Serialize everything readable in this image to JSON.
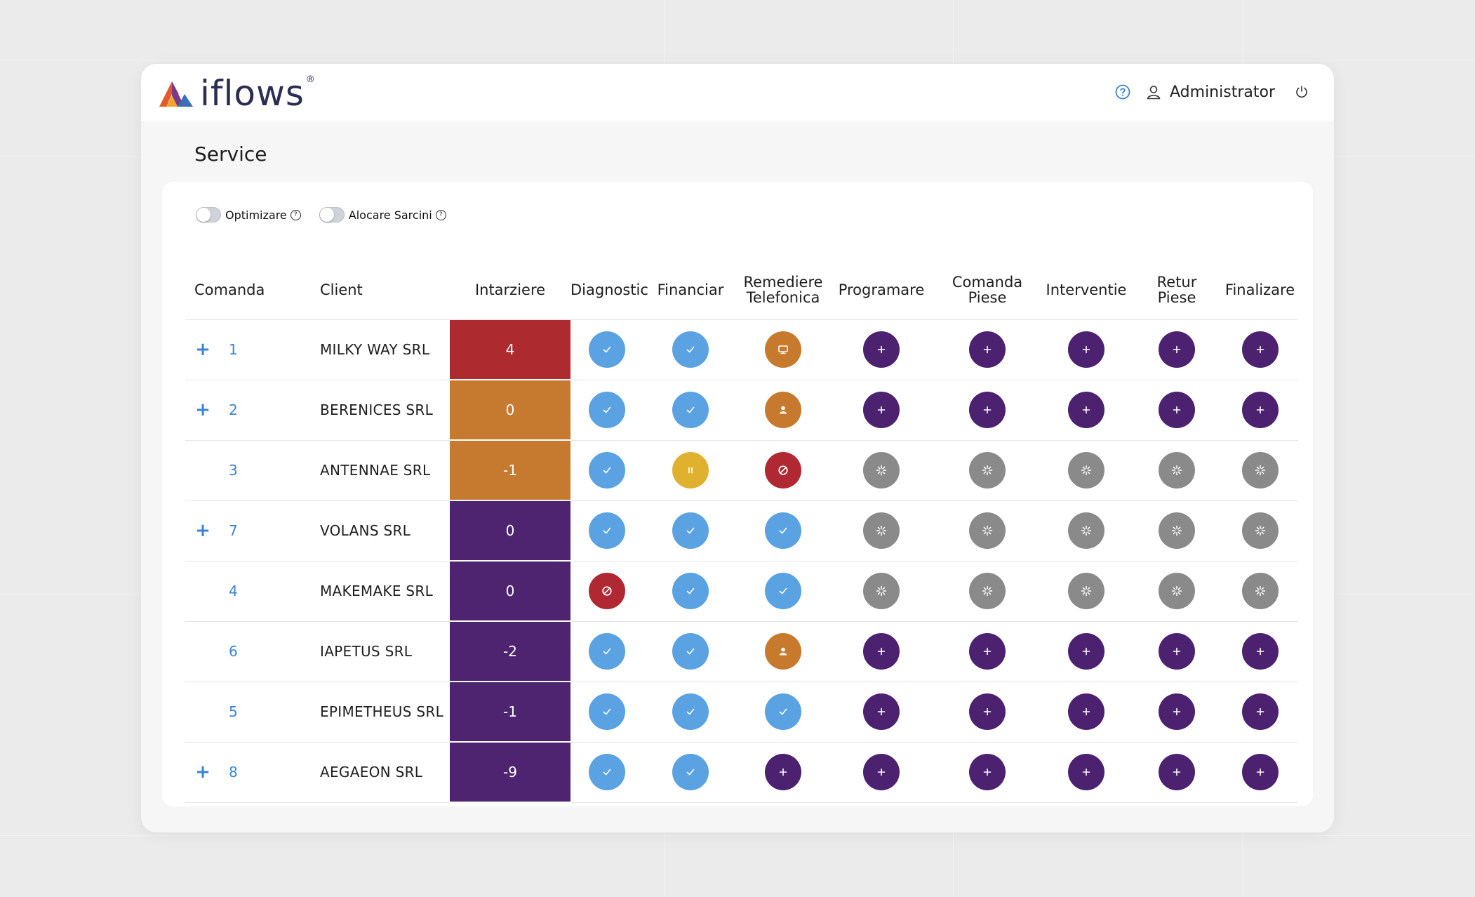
{
  "brand": {
    "name": "iflows",
    "registered_mark": "®",
    "logo_icon": "iflows-logo-icon"
  },
  "header": {
    "help_icon": "help-circle-icon",
    "user_icon": "user-icon",
    "user_name": "Administrator",
    "power_icon": "power-icon"
  },
  "page": {
    "title": "Service"
  },
  "toggles": [
    {
      "label": "Optimizare",
      "enabled": false,
      "help": "?"
    },
    {
      "label": "Alocare Sarcini",
      "enabled": false,
      "help": "?"
    }
  ],
  "table": {
    "columns": [
      {
        "key": "comanda",
        "label": "Comanda"
      },
      {
        "key": "client",
        "label": "Client"
      },
      {
        "key": "intarziere",
        "label": "Intarziere"
      },
      {
        "key": "diagnostic",
        "label": "Diagnostic"
      },
      {
        "key": "financiar",
        "label": "Financiar"
      },
      {
        "key": "remediere",
        "label": "Remediere\nTelefonica"
      },
      {
        "key": "programare",
        "label": "Programare"
      },
      {
        "key": "comanda_piese",
        "label": "Comanda\nPiese"
      },
      {
        "key": "interventie",
        "label": "Interventie"
      },
      {
        "key": "retur_piese",
        "label": "Retur\nPiese"
      },
      {
        "key": "finalizare",
        "label": "Finalizare"
      }
    ],
    "status_colors": {
      "done": "#5aa2e2",
      "add": "#4b2170",
      "loading": "#8a8a8a",
      "blocked": "#b02832",
      "paused": "#e0b12f",
      "remote": "#c77a2e",
      "person": "#c77a2e"
    },
    "delay_colors": {
      "red": "#ad2a2f",
      "orange": "#c57a30",
      "purple": "#4e2370"
    },
    "rows": [
      {
        "expand": true,
        "id": "1",
        "client": "MILKY WAY SRL",
        "delay": "4",
        "delay_color": "red",
        "statuses": [
          "done",
          "done",
          "remote",
          "add",
          "add",
          "add",
          "add",
          "add"
        ]
      },
      {
        "expand": true,
        "id": "2",
        "client": "BERENICES SRL",
        "delay": "0",
        "delay_color": "orange",
        "statuses": [
          "done",
          "done",
          "person",
          "add",
          "add",
          "add",
          "add",
          "add"
        ]
      },
      {
        "expand": false,
        "id": "3",
        "client": "ANTENNAE SRL",
        "delay": "-1",
        "delay_color": "orange",
        "statuses": [
          "done",
          "paused",
          "blocked",
          "loading",
          "loading",
          "loading",
          "loading",
          "loading"
        ]
      },
      {
        "expand": true,
        "id": "7",
        "client": "VOLANS SRL",
        "delay": "0",
        "delay_color": "purple",
        "statuses": [
          "done",
          "done",
          "done",
          "loading",
          "loading",
          "loading",
          "loading",
          "loading"
        ]
      },
      {
        "expand": false,
        "id": "4",
        "client": "MAKEMAKE SRL",
        "delay": "0",
        "delay_color": "purple",
        "statuses": [
          "blocked",
          "done",
          "done",
          "loading",
          "loading",
          "loading",
          "loading",
          "loading"
        ]
      },
      {
        "expand": false,
        "id": "6",
        "client": "IAPETUS SRL",
        "delay": "-2",
        "delay_color": "purple",
        "statuses": [
          "done",
          "done",
          "person",
          "add",
          "add",
          "add",
          "add",
          "add"
        ]
      },
      {
        "expand": false,
        "id": "5",
        "client": "EPIMETHEUS SRL",
        "delay": "-1",
        "delay_color": "purple",
        "statuses": [
          "done",
          "done",
          "done",
          "add",
          "add",
          "add",
          "add",
          "add"
        ]
      },
      {
        "expand": true,
        "id": "8",
        "client": "AEGAEON SRL",
        "delay": "-9",
        "delay_color": "purple",
        "statuses": [
          "done",
          "done",
          "add",
          "add",
          "add",
          "add",
          "add",
          "add"
        ]
      }
    ],
    "expand_symbol": "+"
  }
}
